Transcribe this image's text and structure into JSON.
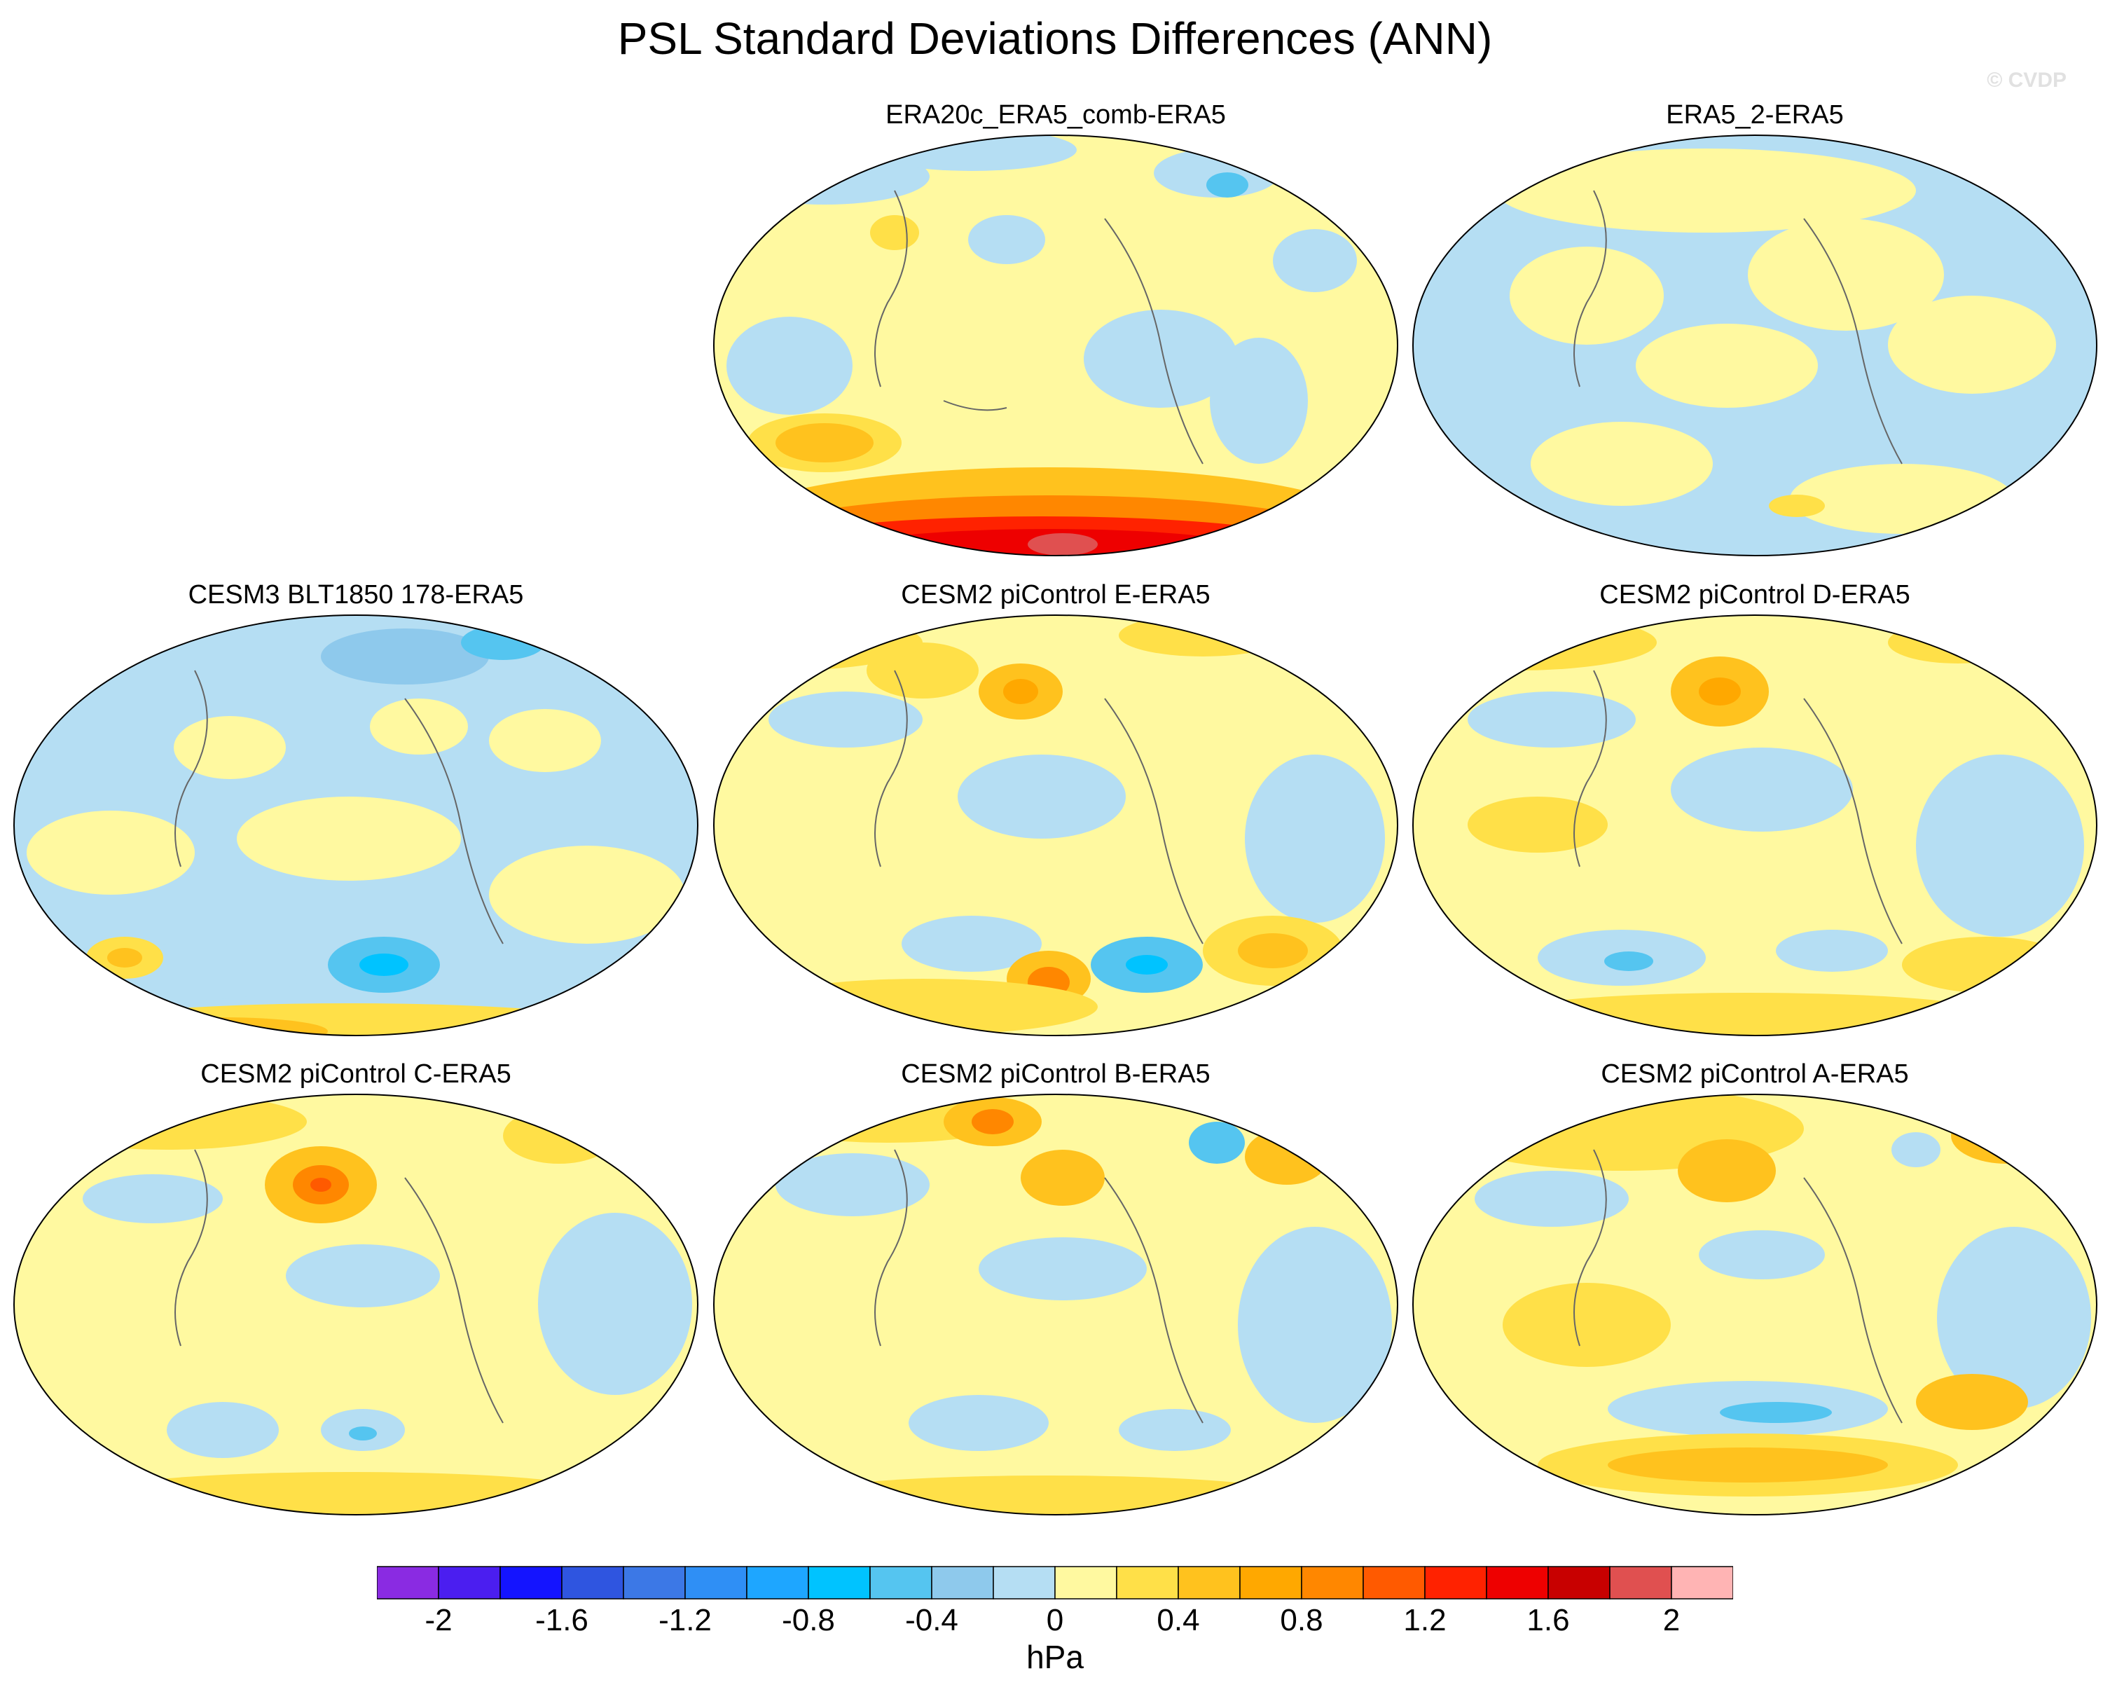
{
  "title": "PSL Standard Deviations Differences (ANN)",
  "credit": "© CVDP",
  "colorbar": {
    "unit": "hPa",
    "tick_labels": [
      "-2",
      "-1.6",
      "-1.2",
      "-0.8",
      "-0.4",
      "0",
      "0.4",
      "0.8",
      "1.2",
      "1.6",
      "2"
    ],
    "colors": [
      "#8a2be2",
      "#4b1ef0",
      "#1414ff",
      "#2f55e0",
      "#3c78e6",
      "#2f8ff5",
      "#1ea6ff",
      "#00c3ff",
      "#55c5f0",
      "#8ec9ec",
      "#b5def3",
      "#fff9a0",
      "#ffe048",
      "#ffc21e",
      "#ffa800",
      "#ff8700",
      "#ff5a00",
      "#ff2200",
      "#ee0000",
      "#c80000",
      "#e05050",
      "#ffb4b4"
    ]
  },
  "panels": [
    {
      "title": "ERA20c_ERA5_comb-ERA5"
    },
    {
      "title": "ERA5_2-ERA5"
    },
    {
      "title": "CESM3 BLT1850 178-ERA5"
    },
    {
      "title": "CESM2 piControl E-ERA5"
    },
    {
      "title": "CESM2 piControl D-ERA5"
    },
    {
      "title": "CESM2 piControl C-ERA5"
    },
    {
      "title": "CESM2 piControl B-ERA5"
    },
    {
      "title": "CESM2 piControl A-ERA5"
    }
  ]
}
